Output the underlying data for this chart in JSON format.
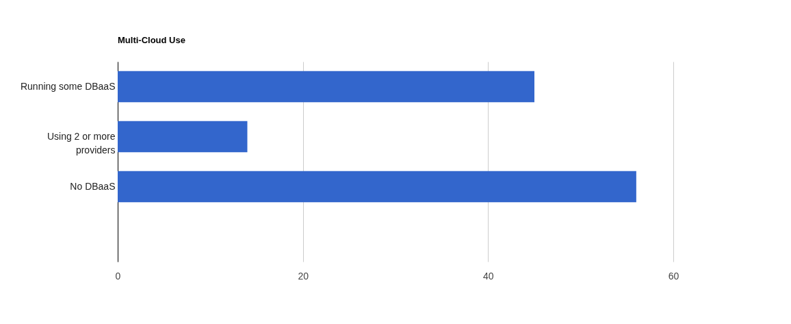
{
  "chart_data": {
    "type": "bar",
    "orientation": "horizontal",
    "title": "Multi-Cloud Use",
    "categories": [
      "Running some DBaaS",
      "Using 2 or more providers",
      "No DBaaS",
      null
    ],
    "values": [
      45,
      14,
      56,
      null
    ],
    "color": "#3366cc",
    "xlim": [
      0,
      60
    ],
    "xticks": [
      0,
      20,
      40,
      60
    ],
    "grid": "x"
  }
}
